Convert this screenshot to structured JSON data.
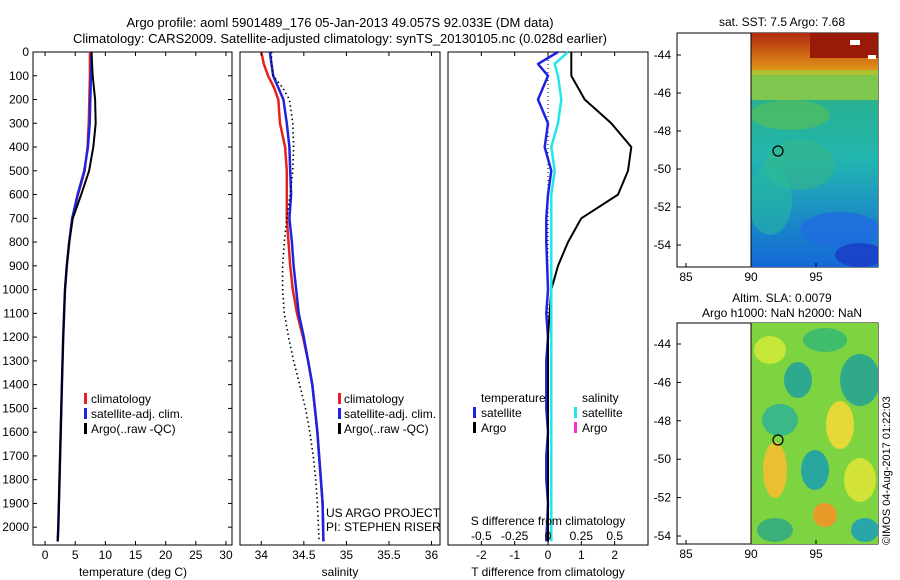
{
  "header": {
    "title_line1": "Argo profile: aoml 5901489_176 05-Jan-2013 49.057S 92.033E (DM data)",
    "title_line2": "Climatology: CARS2009. Satellite-adjusted climatology: synTS_20130105.nc (0.028d earlier)"
  },
  "colors": {
    "climatology": "#e8201c",
    "satellite": "#1d23e0",
    "argo": "#000000",
    "salinity_satellite": "#22e6ea",
    "salinity_argo": "#ff2bd6"
  },
  "chart_data": [
    {
      "type": "line",
      "id": "temperature",
      "xlabel": "temperature (deg C)",
      "xlim": [
        -2,
        31
      ],
      "ylim": [
        0,
        2075
      ],
      "xticks": [
        0,
        5,
        10,
        15,
        20,
        25,
        30
      ],
      "yticks": [
        0,
        100,
        200,
        300,
        400,
        500,
        600,
        700,
        800,
        900,
        1000,
        1100,
        1200,
        1300,
        1400,
        1500,
        1600,
        1700,
        1800,
        1900,
        2000
      ],
      "legend": [
        "climatology",
        "satellite-adj. clim.",
        "Argo(..raw -QC)"
      ],
      "series": [
        {
          "name": "climatology",
          "x": [
            7.4,
            7.4,
            7.3,
            7.2,
            7.0,
            6.6,
            5.5,
            4.5,
            4.0,
            3.6,
            3.3,
            3.0,
            2.8,
            2.6,
            2.5,
            2.4,
            2.3,
            2.2,
            2.1
          ],
          "y": [
            0,
            100,
            200,
            300,
            400,
            500,
            600,
            700,
            800,
            900,
            1000,
            1200,
            1400,
            1600,
            1700,
            1800,
            1900,
            2000,
            2060
          ]
        },
        {
          "name": "satellite-adj. clim.",
          "x": [
            7.7,
            7.6,
            7.5,
            7.4,
            7.1,
            6.5,
            5.4,
            4.5,
            4.0,
            3.6,
            3.3,
            3.0,
            2.8,
            2.6,
            2.5,
            2.4,
            2.3,
            2.2,
            2.1
          ],
          "y": [
            0,
            100,
            200,
            300,
            400,
            500,
            600,
            700,
            800,
            900,
            1000,
            1200,
            1400,
            1600,
            1700,
            1800,
            1900,
            2000,
            2060
          ]
        },
        {
          "name": "Argo(..raw -QC)",
          "x": [
            7.7,
            7.9,
            8.3,
            8.4,
            8.0,
            7.3,
            6.0,
            4.6,
            4.0,
            3.6,
            3.3,
            3.0,
            2.8,
            2.6,
            2.5,
            2.4,
            2.3,
            2.2,
            2.1
          ],
          "y": [
            0,
            100,
            200,
            300,
            400,
            500,
            600,
            700,
            800,
            900,
            1000,
            1200,
            1400,
            1600,
            1700,
            1800,
            1900,
            2000,
            2060
          ]
        }
      ]
    },
    {
      "type": "line",
      "id": "salinity",
      "xlabel": "salinity",
      "xlim": [
        33.75,
        36.1
      ],
      "ylim": [
        0,
        2075
      ],
      "xticks": [
        34,
        34.5,
        35,
        35.5,
        36
      ],
      "legend": [
        "climatology",
        "satellite-adj. clim.",
        "Argo(..raw -QC)"
      ],
      "credit": [
        "US ARGO PROJECT",
        "PI: STEPHEN RISER"
      ],
      "series": [
        {
          "name": "climatology",
          "x": [
            34.0,
            34.03,
            34.08,
            34.15,
            34.2,
            34.22,
            34.28,
            34.3,
            34.3,
            34.3,
            34.32,
            34.34,
            34.37,
            34.42,
            34.49,
            34.55,
            34.6,
            34.63,
            34.66,
            34.68,
            34.7,
            34.72,
            34.73
          ],
          "y": [
            0,
            50,
            100,
            150,
            200,
            300,
            400,
            500,
            600,
            700,
            800,
            900,
            1000,
            1100,
            1200,
            1300,
            1400,
            1500,
            1600,
            1700,
            1800,
            1900,
            2060
          ]
        },
        {
          "name": "satellite-adj. clim.",
          "x": [
            34.1,
            34.12,
            34.14,
            34.2,
            34.26,
            34.3,
            34.33,
            34.34,
            34.35,
            34.33,
            34.36,
            34.38,
            34.41,
            34.44,
            34.5,
            34.55,
            34.6,
            34.63,
            34.66,
            34.68,
            34.7,
            34.72,
            34.73
          ],
          "y": [
            0,
            50,
            100,
            150,
            200,
            300,
            400,
            500,
            600,
            700,
            800,
            900,
            1000,
            1100,
            1200,
            1300,
            1400,
            1500,
            1600,
            1700,
            1800,
            1900,
            2060
          ]
        },
        {
          "name": "Argo(..raw -QC)",
          "x": [
            34.12,
            34.12,
            34.14,
            34.25,
            34.33,
            34.37,
            34.38,
            34.37,
            34.34,
            34.3,
            34.27,
            34.25,
            34.25,
            34.27,
            34.32,
            34.38,
            34.45,
            34.52,
            34.57,
            34.61,
            34.64,
            34.66,
            34.68
          ],
          "y": [
            0,
            50,
            100,
            150,
            200,
            300,
            400,
            500,
            600,
            700,
            800,
            900,
            1000,
            1100,
            1200,
            1300,
            1400,
            1500,
            1600,
            1700,
            1800,
            1900,
            2060
          ]
        }
      ]
    },
    {
      "type": "line",
      "id": "difference",
      "xlabel": "T difference from climatology",
      "top_xlabel": "S difference from climatology",
      "xlim": [
        -3,
        3
      ],
      "ylim": [
        0,
        2075
      ],
      "xticks": [
        -2,
        -1,
        0,
        1,
        2
      ],
      "top_ticks": [
        "-0.5",
        "-0.25",
        "0",
        "0.25",
        "0.5"
      ],
      "top_tick_values": [
        -2,
        -1,
        0,
        1,
        2
      ],
      "legend_headers": [
        "temperature",
        "salinity"
      ],
      "legend_temperature": [
        "satellite",
        "Argo"
      ],
      "legend_salinity": [
        "satellite",
        "Argo"
      ],
      "series": [
        {
          "name": "temperature satellite",
          "x": [
            0.3,
            -0.3,
            0,
            -0.3,
            0,
            -0.1,
            0.1,
            0,
            -0.05,
            -0.05,
            0,
            -0.05,
            0,
            -0.05,
            -0.05,
            0,
            -0.05,
            -0.05,
            0,
            -0.05
          ],
          "y": [
            0,
            50,
            100,
            200,
            300,
            400,
            500,
            600,
            700,
            800,
            1000,
            1100,
            1200,
            1300,
            1500,
            1600,
            1700,
            1800,
            1900,
            2060
          ]
        },
        {
          "name": "temperature Argo",
          "x": [
            0.7,
            0.7,
            1.1,
            1.9,
            2.5,
            2.4,
            2.1,
            1.0,
            0.6,
            0.3,
            0.1,
            0,
            0,
            0,
            0,
            0,
            0,
            0,
            0
          ],
          "y": [
            0,
            100,
            200,
            300,
            400,
            500,
            600,
            700,
            800,
            900,
            1000,
            1200,
            1300,
            1400,
            1500,
            1600,
            1700,
            1800,
            2060
          ]
        },
        {
          "name": "salinity satellite",
          "x": [
            0.6,
            0.2,
            0.3,
            0.4,
            0.3,
            0.1,
            0.2,
            0.1,
            0.1,
            0.1,
            0.1,
            0.1,
            0.1,
            0.1,
            0.1,
            0.1,
            0.1,
            0.1,
            0.1,
            0.1
          ],
          "y": [
            0,
            50,
            100,
            200,
            300,
            400,
            500,
            600,
            700,
            800,
            900,
            1000,
            1100,
            1200,
            1400,
            1600,
            1700,
            1800,
            1900,
            2060
          ]
        },
        {
          "name": "salinity Argo",
          "x": [],
          "y": []
        }
      ]
    }
  ],
  "sst_map": {
    "title": "sat. SST: 7.5 Argo: 7.68",
    "yticks": [
      "-44",
      "-46",
      "-48",
      "-50",
      "-52",
      "-54"
    ],
    "xticks": [
      "85",
      "90",
      "95"
    ]
  },
  "sla_map": {
    "title_line1": "Altim. SLA: 0.0079",
    "title_line2": "Argo h1000: NaN h2000: NaN",
    "yticks": [
      "-44",
      "-46",
      "-48",
      "-50",
      "-52",
      "-54"
    ],
    "xticks": [
      "85",
      "90",
      "95"
    ]
  },
  "footer": {
    "stamp": "©IMOS 04-Aug-2017 01:22:03"
  }
}
